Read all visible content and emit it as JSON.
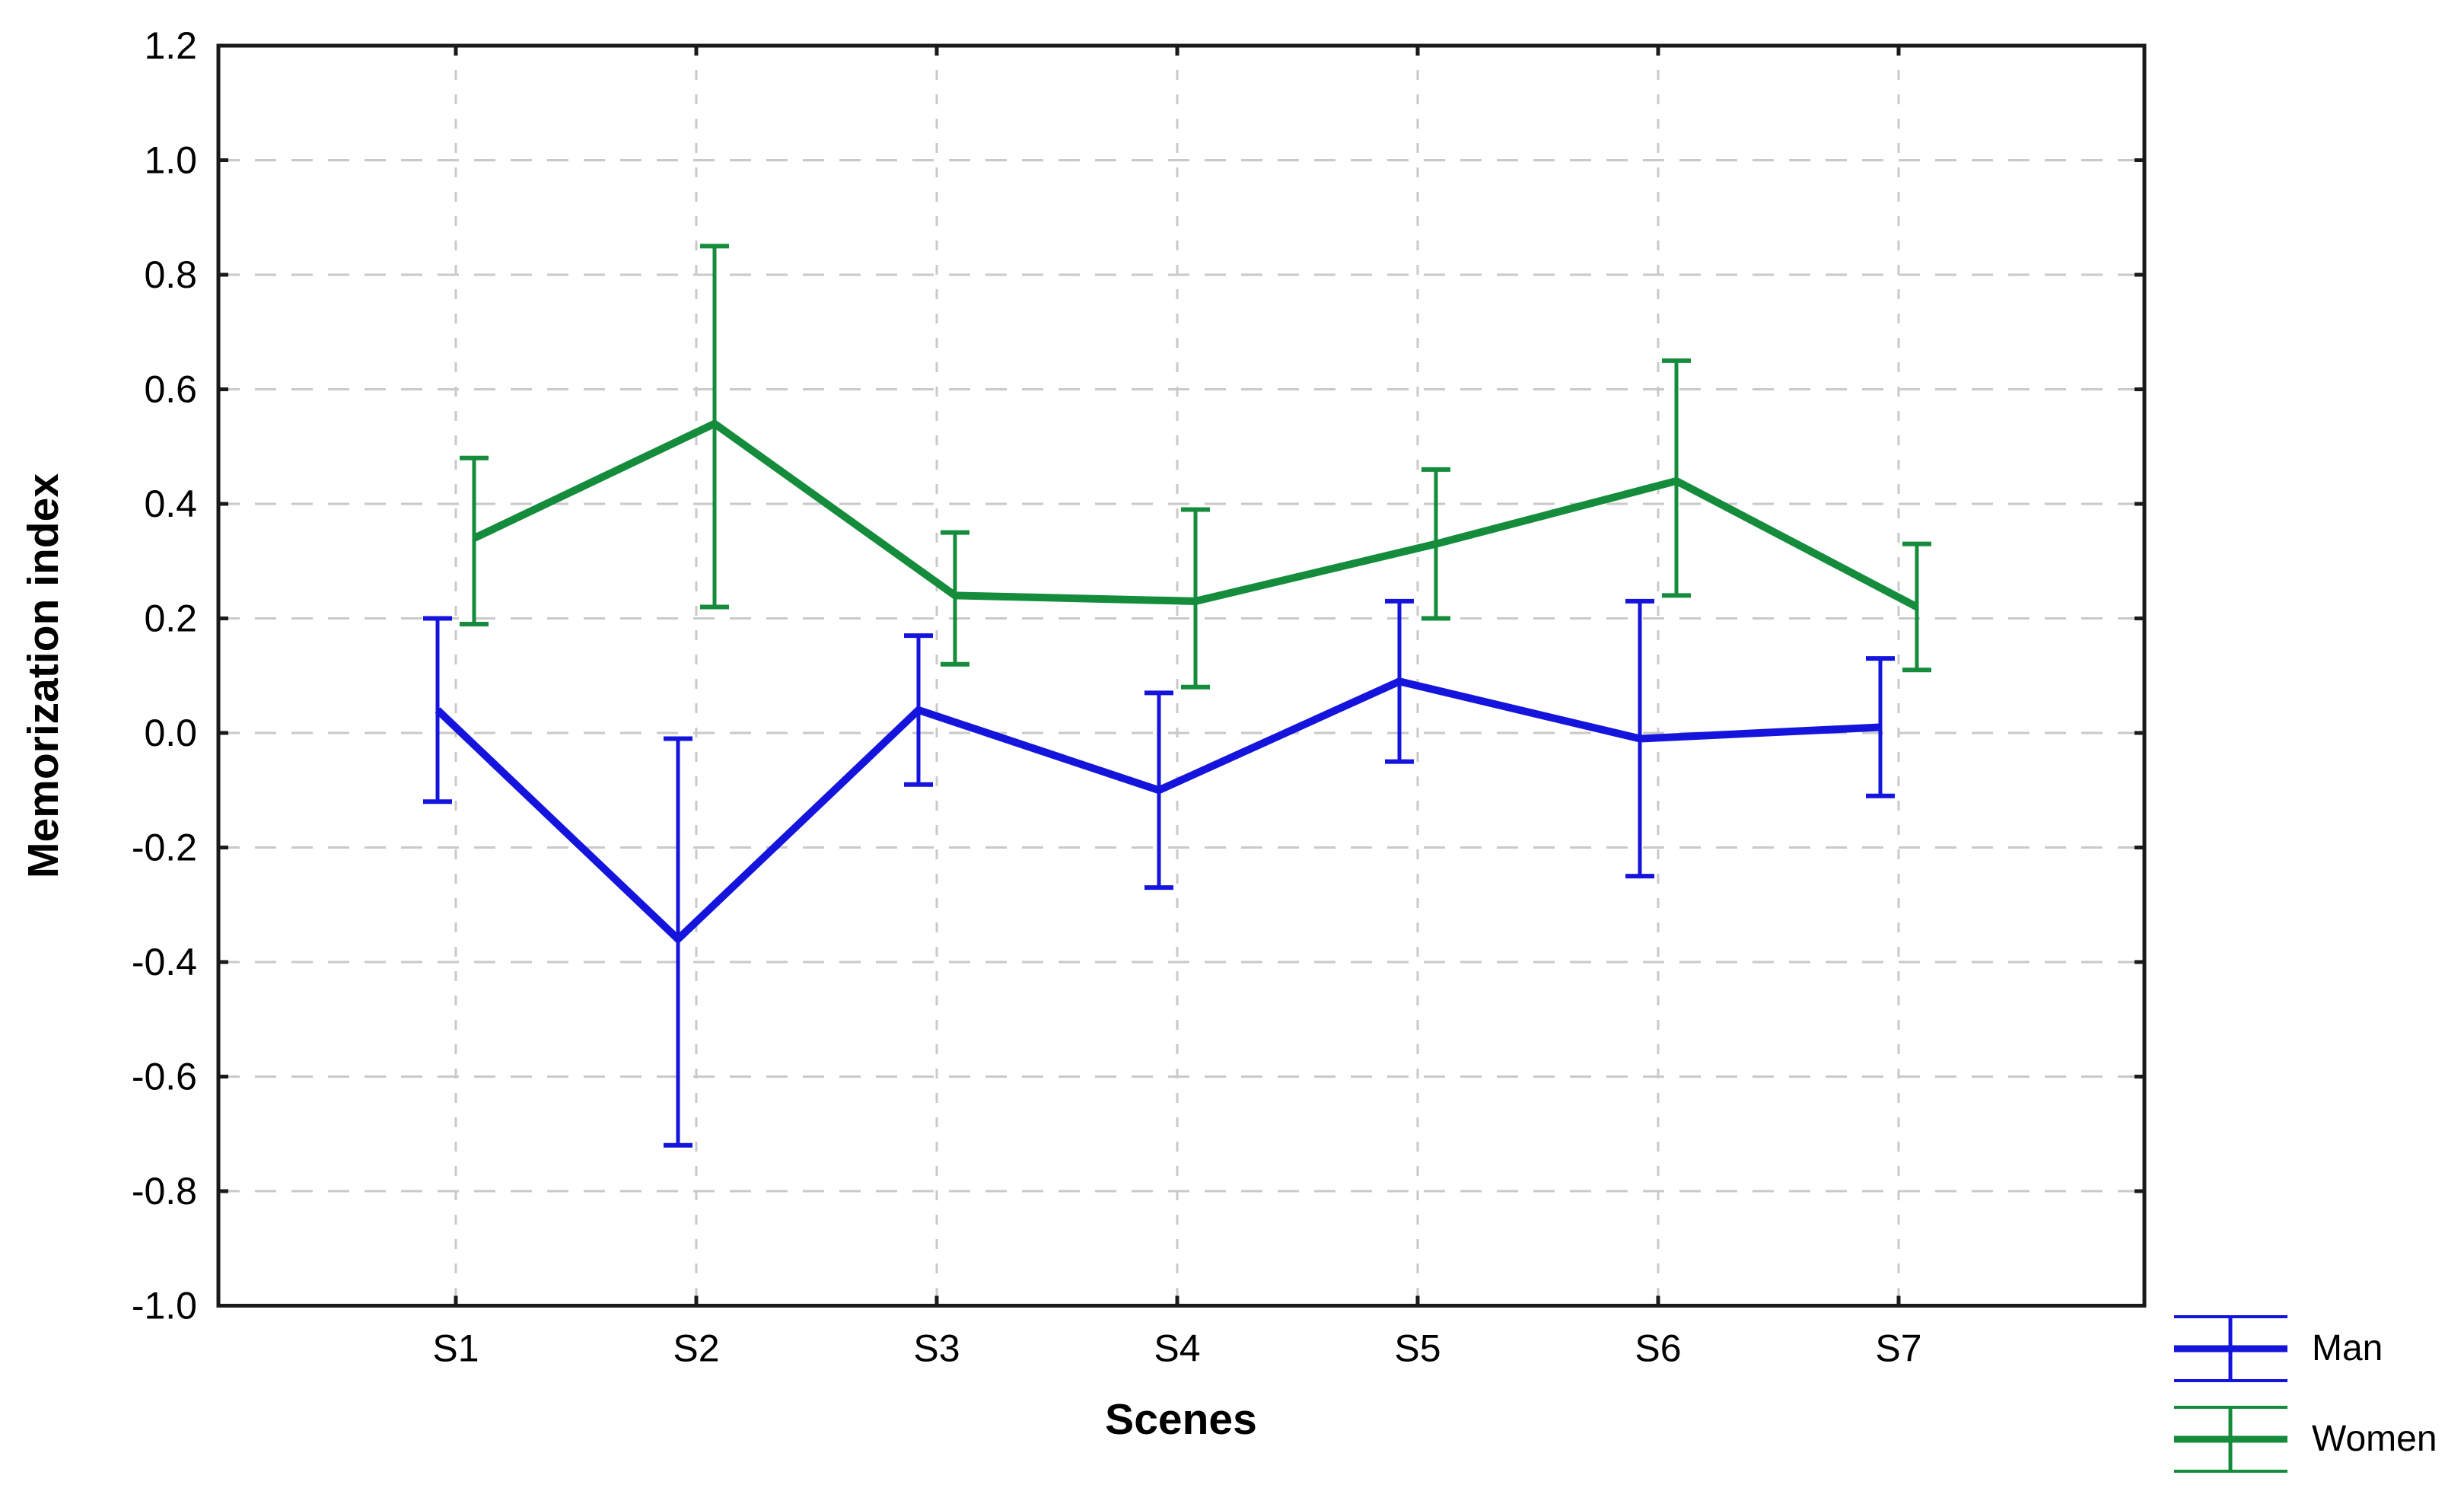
{
  "chart_data": {
    "type": "line",
    "title": "",
    "xlabel": "Scenes",
    "ylabel": "Memorization index",
    "categories": [
      "S1",
      "S2",
      "S3",
      "S4",
      "S5",
      "S6",
      "S7"
    ],
    "yticks": [
      "-1.0",
      "-0.8",
      "-0.6",
      "-0.4",
      "-0.2",
      "0.0",
      "0.2",
      "0.4",
      "0.6",
      "0.8",
      "1.0",
      "1.2"
    ],
    "ylim": [
      -1.0,
      1.2
    ],
    "grid": true,
    "grid_style": "dashed",
    "legend_position": "bottom-right",
    "colors": {
      "axis": "#1a1a1a",
      "grid": "#c9c9c9",
      "text": "#000000",
      "man_blue": "#1414DC",
      "women_green": "#148C3C"
    },
    "series": [
      {
        "name": "Man",
        "color": "#1414DC",
        "marker": "error-bar-line",
        "values": [
          0.04,
          -0.36,
          0.04,
          -0.1,
          0.09,
          -0.01,
          0.01
        ],
        "err_lower": [
          -0.12,
          -0.72,
          -0.09,
          -0.27,
          -0.05,
          -0.25,
          -0.11
        ],
        "err_upper": [
          0.2,
          -0.01,
          0.17,
          0.07,
          0.23,
          0.23,
          0.13
        ]
      },
      {
        "name": "Women",
        "color": "#148C3C",
        "marker": "error-bar-line",
        "values": [
          0.34,
          0.54,
          0.24,
          0.23,
          0.33,
          0.44,
          0.22
        ],
        "err_lower": [
          0.19,
          0.22,
          0.12,
          0.08,
          0.2,
          0.24,
          0.11
        ],
        "err_upper": [
          0.48,
          0.85,
          0.35,
          0.39,
          0.46,
          0.65,
          0.33
        ]
      }
    ]
  }
}
